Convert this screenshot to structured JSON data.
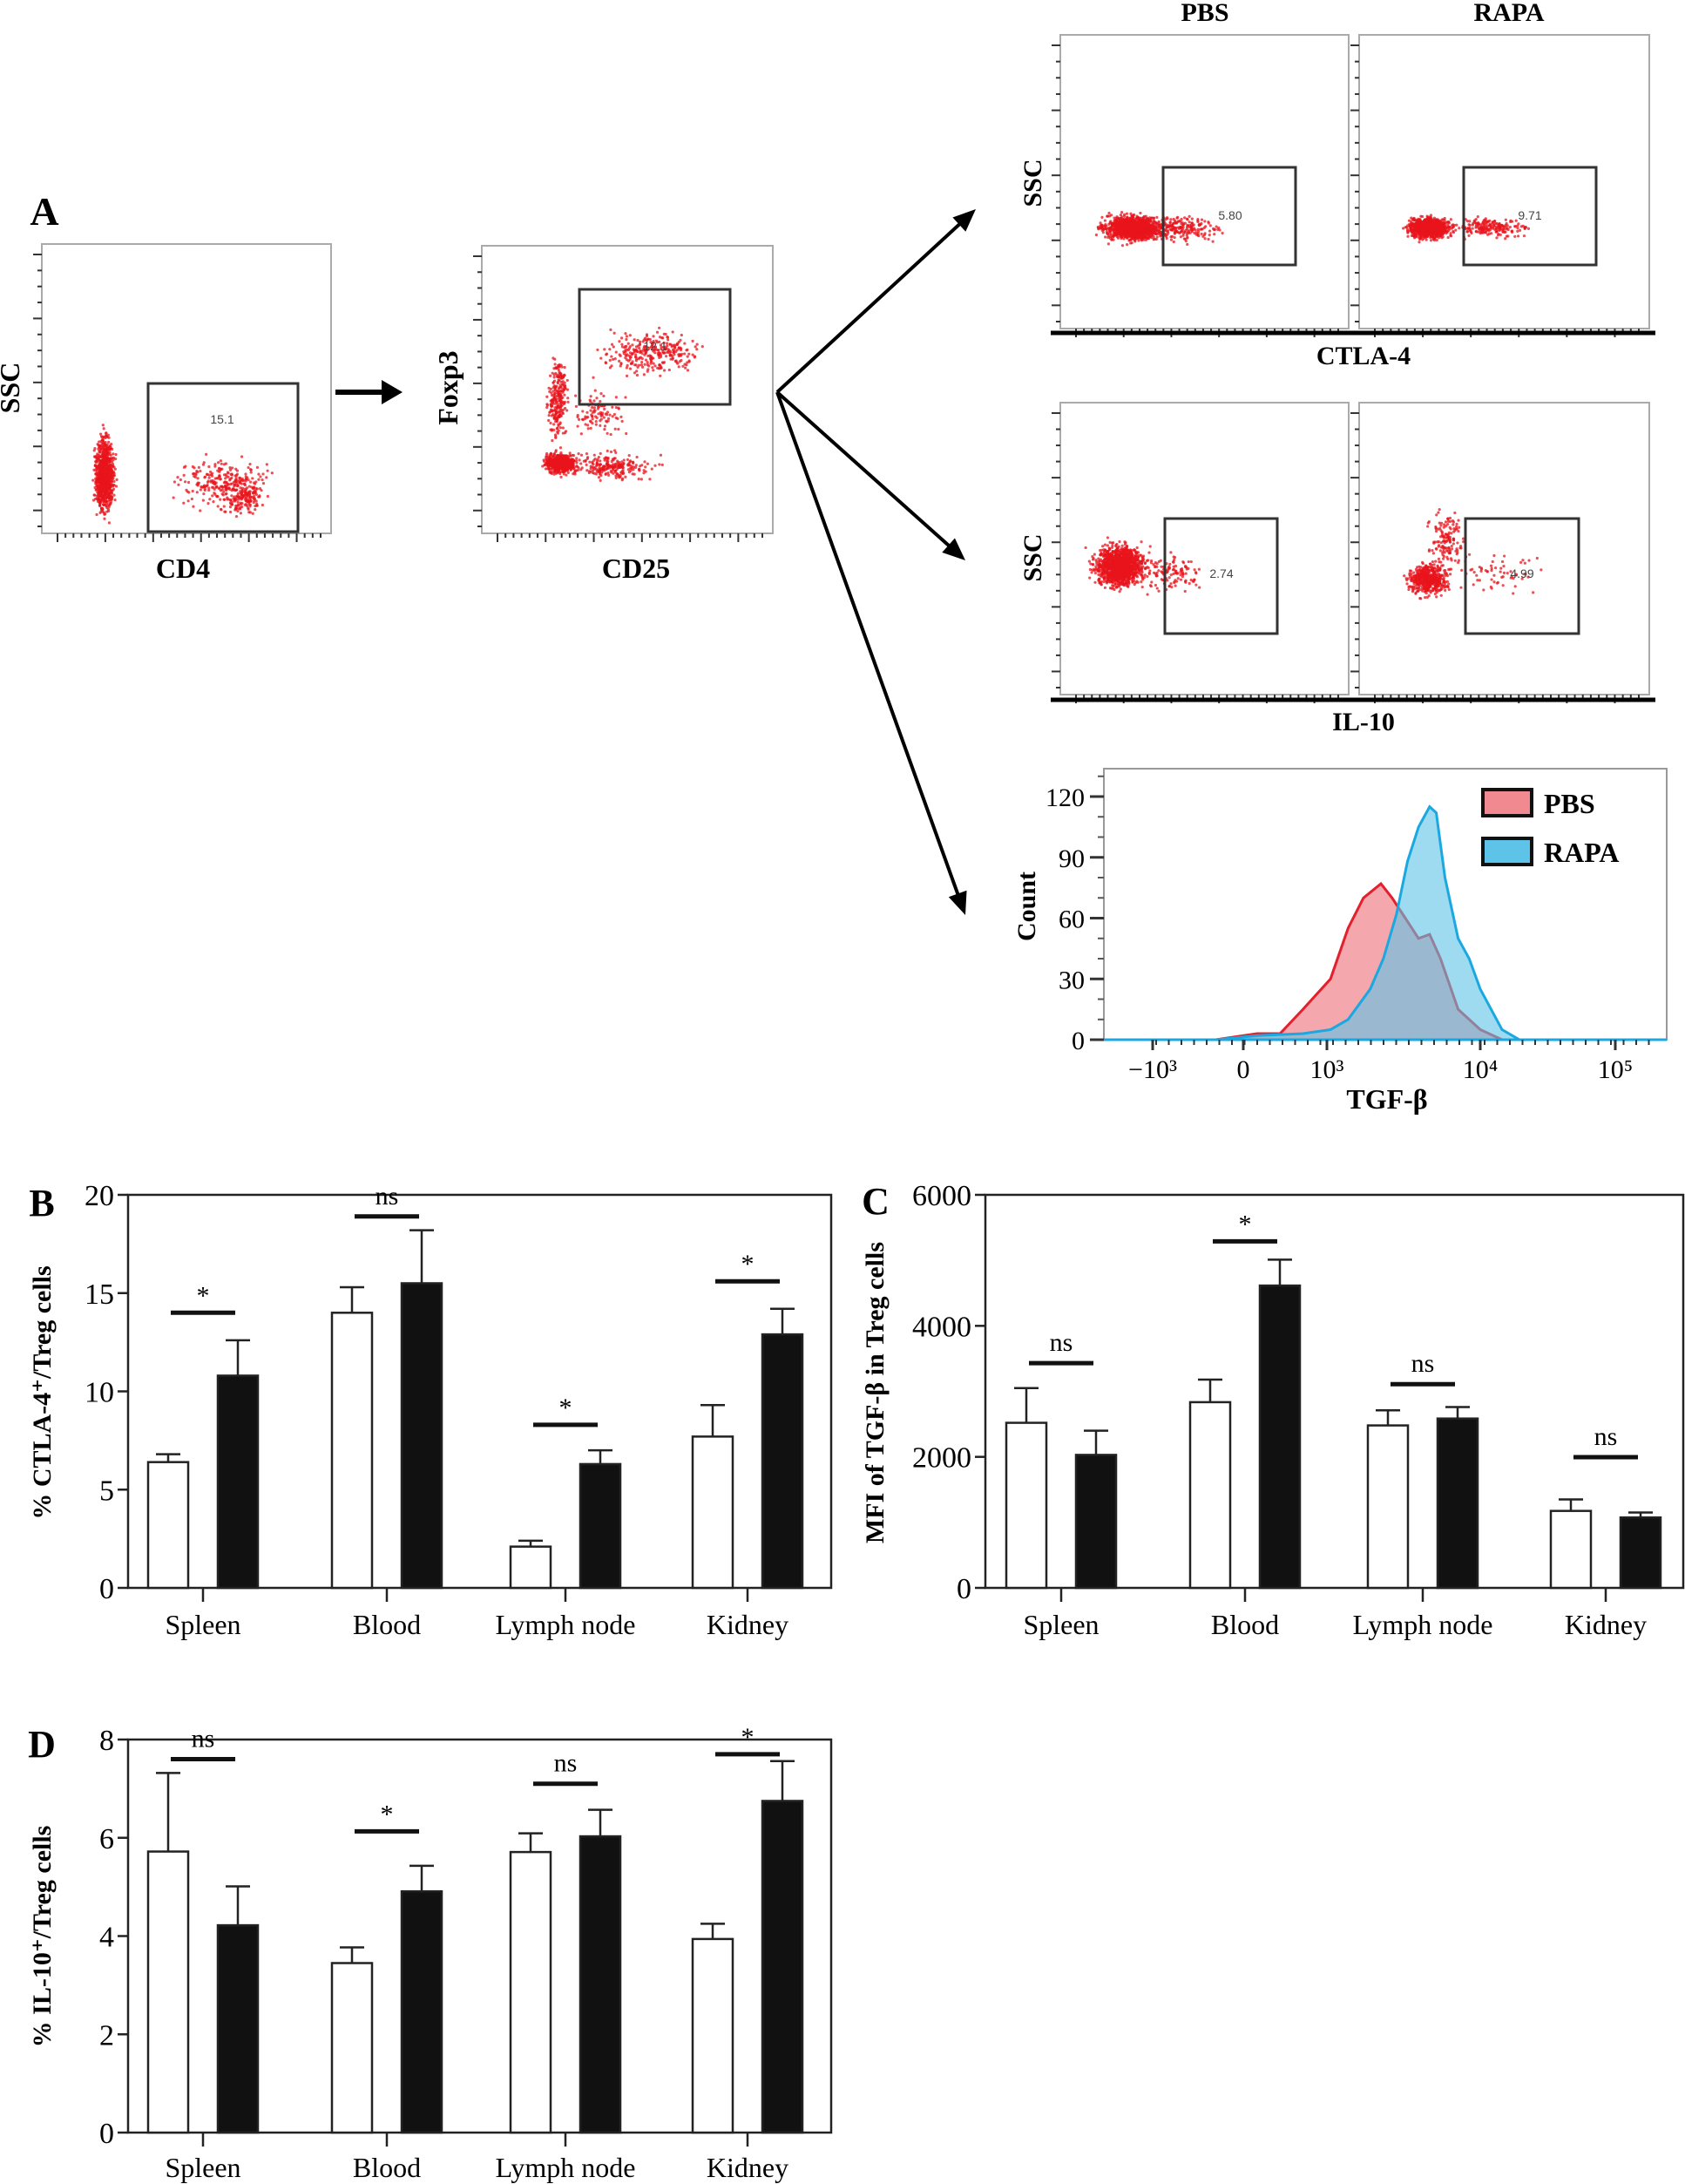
{
  "panel_a": {
    "letter": "A",
    "gating": [
      {
        "x_label": "CD4",
        "y_label": "SSC",
        "gate_value": "15.1"
      },
      {
        "x_label": "CD25",
        "y_label": "Foxp3",
        "gate_value": "12.1"
      }
    ],
    "columns": [
      "PBS",
      "RAPA"
    ],
    "ctla4": {
      "x_label": "CTLA-4",
      "y_label": "SSC",
      "gate_values": [
        "5.80",
        "9.71"
      ]
    },
    "il10": {
      "x_label": "IL-10",
      "y_label": "SSC",
      "gate_values": [
        "2.74",
        "4.99"
      ]
    },
    "histogram": {
      "type": "area",
      "x_label": "TGF-β",
      "y_label": "Count",
      "y_ticks": [
        0,
        30,
        60,
        90,
        120
      ],
      "y_tick_labels": [
        "0",
        "30",
        "60",
        "90",
        "120"
      ],
      "x_ticks": [
        -1000,
        0,
        1000,
        10000,
        100000
      ],
      "x_tick_labels": [
        "−10³",
        "0",
        "10³",
        "10⁴",
        "10⁵"
      ],
      "legend_position": "top-right",
      "series": [
        {
          "name": "PBS",
          "fill": "#f08a90",
          "stroke": "#e3202c",
          "points": [
            [
              -300,
              0
            ],
            [
              165,
              3
            ],
            [
              440,
              3
            ],
            [
              714,
              15
            ],
            [
              1055,
              30
            ],
            [
              1375,
              55
            ],
            [
              1730,
              70
            ],
            [
              2250,
              77
            ],
            [
              2660,
              70
            ],
            [
              3245,
              60
            ],
            [
              3960,
              50
            ],
            [
              4675,
              52
            ],
            [
              5510,
              40
            ],
            [
              7175,
              15
            ],
            [
              10000,
              5
            ],
            [
              14500,
              0
            ]
          ]
        },
        {
          "name": "RAPA",
          "fill": "#5ec3e8",
          "stroke": "#1aa8e0",
          "points": [
            [
              -300,
              0
            ],
            [
              165,
              2
            ],
            [
              714,
              3
            ],
            [
              1055,
              5
            ],
            [
              1375,
              10
            ],
            [
              1915,
              25
            ],
            [
              2335,
              40
            ],
            [
              2845,
              62
            ],
            [
              3355,
              88
            ],
            [
              3960,
              105
            ],
            [
              4675,
              115
            ],
            [
              5165,
              112
            ],
            [
              5890,
              80
            ],
            [
              7175,
              50
            ],
            [
              8470,
              40
            ],
            [
              10000,
              25
            ],
            [
              14500,
              5
            ],
            [
              19500,
              0
            ]
          ]
        }
      ]
    }
  },
  "chart_data": [
    {
      "panel": "B",
      "type": "bar",
      "categories": [
        "Spleen",
        "Blood",
        "Lymph node",
        "Kidney"
      ],
      "ylabel": "% CTLA-4⁺/Treg cells",
      "ylim": [
        0,
        20
      ],
      "yticks": [
        0,
        5,
        10,
        15,
        20
      ],
      "series": [
        {
          "fill": "#ffffff",
          "values": [
            6.4,
            14.0,
            2.1,
            7.7
          ],
          "error_upper": [
            6.8,
            15.3,
            2.4,
            9.3
          ]
        },
        {
          "fill": "#111111",
          "values": [
            10.8,
            15.5,
            6.3,
            12.9
          ],
          "error_upper": [
            12.6,
            18.2,
            7.0,
            14.2
          ]
        }
      ],
      "significance": [
        {
          "label": "*",
          "level": 14.0
        },
        {
          "label": "ns",
          "level": 18.9
        },
        {
          "label": "*",
          "level": 8.3
        },
        {
          "label": "*",
          "level": 15.6
        }
      ]
    },
    {
      "panel": "C",
      "type": "bar",
      "categories": [
        "Spleen",
        "Blood",
        "Lymph node",
        "Kidney"
      ],
      "ylabel": "MFI of TGF-β in Treg cells",
      "ylim": [
        0,
        6000
      ],
      "yticks": [
        0,
        2000,
        4000,
        6000
      ],
      "series": [
        {
          "fill": "#ffffff",
          "values": [
            2520,
            2835,
            2480,
            1175
          ],
          "error_upper": [
            3050,
            3180,
            2710,
            1350
          ]
        },
        {
          "fill": "#111111",
          "values": [
            2030,
            4615,
            2585,
            1075
          ],
          "error_upper": [
            2400,
            5010,
            2760,
            1150
          ]
        }
      ],
      "significance": [
        {
          "label": "ns",
          "level": 3430
        },
        {
          "label": "*",
          "level": 5290
        },
        {
          "label": "ns",
          "level": 3110
        },
        {
          "label": "ns",
          "level": 1995
        }
      ]
    },
    {
      "panel": "D",
      "type": "bar",
      "categories": [
        "Spleen",
        "Blood",
        "Lymph node",
        "Kidney"
      ],
      "ylabel": "% IL-10⁺/Treg cells",
      "ylim": [
        0,
        8
      ],
      "yticks": [
        0,
        2,
        4,
        6,
        8
      ],
      "series": [
        {
          "fill": "#ffffff",
          "values": [
            5.72,
            3.45,
            5.71,
            3.94
          ],
          "error_upper": [
            7.32,
            3.77,
            6.09,
            4.25
          ]
        },
        {
          "fill": "#111111",
          "values": [
            4.22,
            4.91,
            6.03,
            6.75
          ],
          "error_upper": [
            5.01,
            5.43,
            6.57,
            7.56
          ]
        }
      ],
      "significance": [
        {
          "label": "ns",
          "level": 7.6
        },
        {
          "label": "*",
          "level": 6.13
        },
        {
          "label": "ns",
          "level": 7.1
        },
        {
          "label": "*",
          "level": 7.7
        }
      ]
    }
  ]
}
